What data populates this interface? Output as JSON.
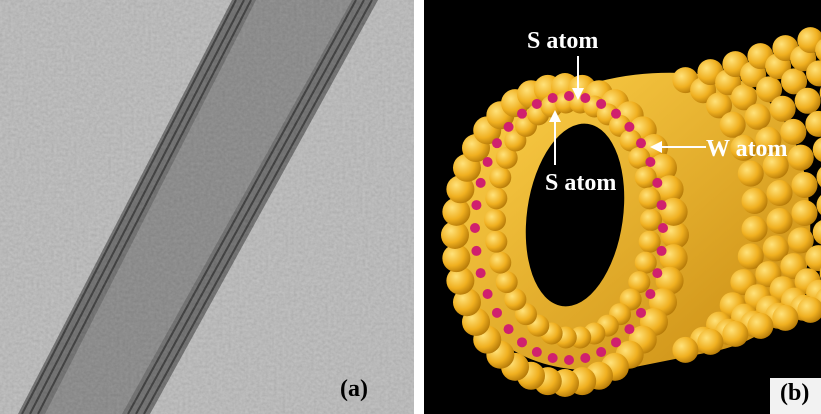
{
  "panels": [
    {
      "label": "(a)"
    },
    {
      "label": "(b)",
      "annotations": [
        "S atom",
        "S atom",
        "W atom"
      ]
    }
  ]
}
